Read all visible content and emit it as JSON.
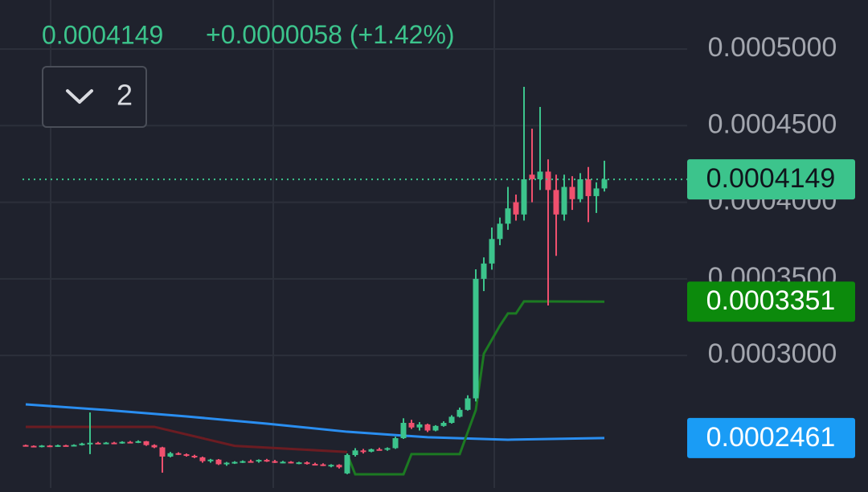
{
  "chart_data": {
    "type": "candlestick",
    "legend": {
      "price_path": "candles.close.72",
      "change": "+0.0000058",
      "change_pct": "(+1.42%)"
    },
    "interval_count": "2",
    "up_color": "#3cc48c",
    "down_color": "#f0506e",
    "grid": true,
    "ylim": [
      0.0002135,
      0.000532
    ],
    "yticks": [
      {
        "value": 0.0005,
        "label": "0.0005000"
      },
      {
        "value": 0.00045,
        "label": "0.0004500"
      },
      {
        "value": 0.0004,
        "label": "0.0004000"
      },
      {
        "value": 0.00035,
        "label": "0.0003500"
      },
      {
        "value": 0.0003,
        "label": "0.0003000"
      }
    ],
    "candles": {
      "open": [
        0.0002415,
        0.000241,
        0.0002404,
        0.0002412,
        0.0002406,
        0.0002414,
        0.0002409,
        0.0002416,
        0.000242,
        0.000243,
        0.0002428,
        0.0002431,
        0.0002427,
        0.0002436,
        0.0002432,
        0.000244,
        0.0002415,
        0.00024,
        0.000234,
        0.0002362,
        0.0002355,
        0.0002345,
        0.0002335,
        0.000231,
        0.000232,
        0.000229,
        0.00023,
        0.0002305,
        0.000231,
        0.0002308,
        0.0002318,
        0.000231,
        0.0002302,
        0.0002306,
        0.0002298,
        0.0002302,
        0.0002292,
        0.0002289,
        0.0002282,
        0.0002286,
        0.000223,
        0.000235,
        0.000238,
        0.0002372,
        0.0002388,
        0.0002385,
        0.0002395,
        0.000246,
        0.000256,
        0.000253,
        0.000255,
        0.000251,
        0.000254,
        0.000256,
        0.00026,
        0.0002645,
        0.000272,
        0.00035,
        0.00036,
        0.000376,
        0.000386,
        0.0004,
        0.000392,
        0.000418,
        0.000415,
        0.00042,
        0.000408,
        0.000392,
        0.00041,
        0.000402,
        0.000415,
        0.000404,
        0.000409
      ],
      "high": [
        0.0002418,
        0.0002413,
        0.0002415,
        0.0002415,
        0.0002418,
        0.0002417,
        0.000242,
        0.000243,
        0.0002628,
        0.0002436,
        0.0002435,
        0.0002436,
        0.000244,
        0.0002442,
        0.0002446,
        0.0002442,
        0.000242,
        0.0002404,
        0.000237,
        0.0002368,
        0.000236,
        0.0002352,
        0.000234,
        0.0002325,
        0.0002324,
        0.0002305,
        0.000231,
        0.0002315,
        0.000232,
        0.0002322,
        0.0002325,
        0.0002318,
        0.0002312,
        0.000231,
        0.0002306,
        0.0002308,
        0.00023,
        0.0002296,
        0.000229,
        0.000229,
        0.000236,
        0.0002395,
        0.000239,
        0.0002392,
        0.0002398,
        0.00024,
        0.000247,
        0.000259,
        0.000258,
        0.0002565,
        0.0002555,
        0.0002545,
        0.000257,
        0.000261,
        0.000266,
        0.000274,
        0.0003562,
        0.000364,
        0.0003835,
        0.00039,
        0.00041,
        0.000405,
        0.0004753,
        0.000448,
        0.0004622,
        0.000428,
        0.000418,
        0.000418,
        0.000417,
        0.000419,
        0.000423,
        0.000413,
        0.0004271
      ],
      "low": [
        0.0002405,
        0.00024,
        0.00024,
        0.0002402,
        0.0002403,
        0.0002405,
        0.0002406,
        0.0002412,
        0.0002356,
        0.0002424,
        0.0002422,
        0.0002425,
        0.0002424,
        0.000243,
        0.0002428,
        0.000241,
        0.0002395,
        0.0002235,
        0.0002335,
        0.000235,
        0.000234,
        0.000233,
        0.00023,
        0.00023,
        0.0002285,
        0.000228,
        0.0002292,
        0.0002298,
        0.0002302,
        0.00023,
        0.0002305,
        0.0002298,
        0.0002296,
        0.0002295,
        0.000229,
        0.0002288,
        0.0002285,
        0.0002278,
        0.000227,
        0.0002262,
        0.0002225,
        0.000234,
        0.000236,
        0.0002368,
        0.000238,
        0.0002378,
        0.000239,
        0.0002455,
        0.000252,
        0.000251,
        0.00025,
        0.0002505,
        0.0002535,
        0.0002555,
        0.0002595,
        0.000264,
        0.00027,
        0.000342,
        0.000356,
        0.000372,
        0.000382,
        0.000388,
        0.000388,
        0.0004,
        0.000408,
        0.0003326,
        0.000365,
        0.000388,
        0.000395,
        0.0004,
        0.000387,
        0.000393,
        0.000407
      ],
      "close": [
        0.000241,
        0.0002405,
        0.0002412,
        0.0002406,
        0.0002414,
        0.0002409,
        0.0002416,
        0.0002425,
        0.000243,
        0.0002428,
        0.0002431,
        0.0002427,
        0.0002436,
        0.0002432,
        0.000244,
        0.0002415,
        0.00024,
        0.000234,
        0.0002362,
        0.0002355,
        0.0002345,
        0.0002335,
        0.000231,
        0.000232,
        0.000229,
        0.00023,
        0.0002305,
        0.000231,
        0.0002308,
        0.0002318,
        0.000231,
        0.0002302,
        0.0002306,
        0.0002298,
        0.0002302,
        0.0002292,
        0.0002289,
        0.0002282,
        0.0002286,
        0.000227,
        0.000235,
        0.000238,
        0.0002372,
        0.0002388,
        0.0002385,
        0.0002395,
        0.000246,
        0.000256,
        0.000253,
        0.000255,
        0.000251,
        0.000254,
        0.000256,
        0.00026,
        0.0002645,
        0.000272,
        0.00035,
        0.00036,
        0.000376,
        0.000386,
        0.000396,
        0.000392,
        0.000415,
        0.000415,
        0.00042,
        0.000408,
        0.000392,
        0.00041,
        0.000402,
        0.000415,
        0.000404,
        0.000409,
        0.0004149
      ]
    },
    "lines": [
      {
        "color": "#2a8ef0",
        "badge_color": "#1a9cf5",
        "x": [
          0,
          10,
          20,
          30,
          40,
          50,
          60,
          72
        ],
        "values": [
          0.0002681,
          0.0002644,
          0.0002602,
          0.0002555,
          0.0002502,
          0.0002466,
          0.000245,
          0.0002461
        ]
      },
      {
        "color": "#6b1c22",
        "x": [
          0,
          16,
          26,
          40
        ],
        "values": [
          0.0002534,
          0.0002534,
          0.000241,
          0.000237
        ]
      },
      {
        "color": "#1c7a22",
        "badge_color": "#0c8a0c",
        "x": [
          40,
          41,
          47,
          48,
          54,
          56,
          57,
          59,
          60,
          61,
          62,
          72
        ],
        "values": [
          0.0002356,
          0.0002224,
          0.0002224,
          0.0002356,
          0.0002356,
          0.0002644,
          0.0003011,
          0.0003195,
          0.0003274,
          0.0003274,
          0.0003353,
          0.0003351
        ]
      }
    ]
  }
}
